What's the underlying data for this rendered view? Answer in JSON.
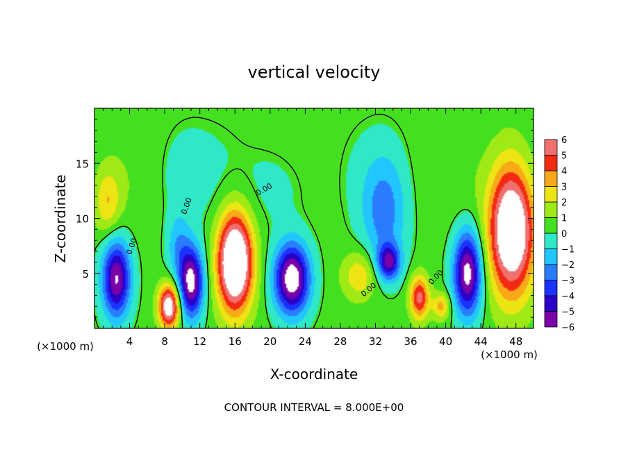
{
  "chart_data": {
    "type": "heatmap",
    "title": "vertical velocity",
    "xlabel": "X-coordinate",
    "ylabel": "Z-coordinate",
    "x_unit_label_left": "(×1000 m)",
    "x_unit_label_right": "(×1000 m)",
    "xlim": [
      0,
      50
    ],
    "ylim": [
      0,
      20
    ],
    "x_ticks": [
      4,
      8,
      12,
      16,
      20,
      24,
      28,
      32,
      36,
      40,
      44,
      48
    ],
    "y_ticks": [
      5,
      10,
      15
    ],
    "colorbar": {
      "min": -6,
      "max": 6,
      "tick_labels": [
        "6",
        "5",
        "4",
        "3",
        "2",
        "1",
        "0",
        "−1",
        "−2",
        "−3",
        "−4",
        "−5",
        "−6"
      ]
    },
    "contour_labels": [
      "0.00",
      "0.00",
      "0.00",
      "0.00",
      "0.00"
    ],
    "footer": "CONTOUR INTERVAL = 8.000E+00",
    "features": [
      {
        "x": 1.5,
        "z": 11.5,
        "w": 1.5,
        "r": 3.0,
        "amp": 2.5
      },
      {
        "x": 2.5,
        "z": 4.5,
        "w": 1.6,
        "r": 3.5,
        "amp": -6.5
      },
      {
        "x": 8.5,
        "z": 2.0,
        "w": 1.2,
        "r": 2.0,
        "amp": 7.0
      },
      {
        "x": 11.0,
        "z": 4.2,
        "w": 1.4,
        "r": 3.2,
        "amp": -7.0
      },
      {
        "x": 9.5,
        "z": 7.5,
        "w": 1.3,
        "r": 3.0,
        "amp": -2.0
      },
      {
        "x": 16.0,
        "z": 6.0,
        "w": 2.0,
        "r": 4.5,
        "amp": 9.0
      },
      {
        "x": 22.5,
        "z": 4.5,
        "w": 2.0,
        "r": 3.2,
        "amp": -7.5
      },
      {
        "x": 30.2,
        "z": 4.8,
        "w": 2.0,
        "r": 2.2,
        "amp": 2.5
      },
      {
        "x": 33.5,
        "z": 6.0,
        "w": 1.3,
        "r": 1.6,
        "amp": -5.0
      },
      {
        "x": 33.0,
        "z": 10.5,
        "w": 2.5,
        "r": 5.0,
        "amp": -2.8
      },
      {
        "x": 37.0,
        "z": 2.8,
        "w": 1.1,
        "r": 2.0,
        "amp": 5.0
      },
      {
        "x": 39.5,
        "z": 2.0,
        "w": 1.0,
        "r": 1.2,
        "amp": 3.0
      },
      {
        "x": 42.5,
        "z": 5.0,
        "w": 1.6,
        "r": 3.8,
        "amp": -7.0
      },
      {
        "x": 47.5,
        "z": 9.0,
        "w": 2.6,
        "r": 6.0,
        "amp": 8.5
      },
      {
        "x": 21.0,
        "z": 13.0,
        "w": 4.0,
        "r": 4.0,
        "amp": -1.0
      },
      {
        "x": 10.0,
        "z": 14.0,
        "w": 3.0,
        "r": 4.0,
        "amp": -0.8
      }
    ]
  }
}
